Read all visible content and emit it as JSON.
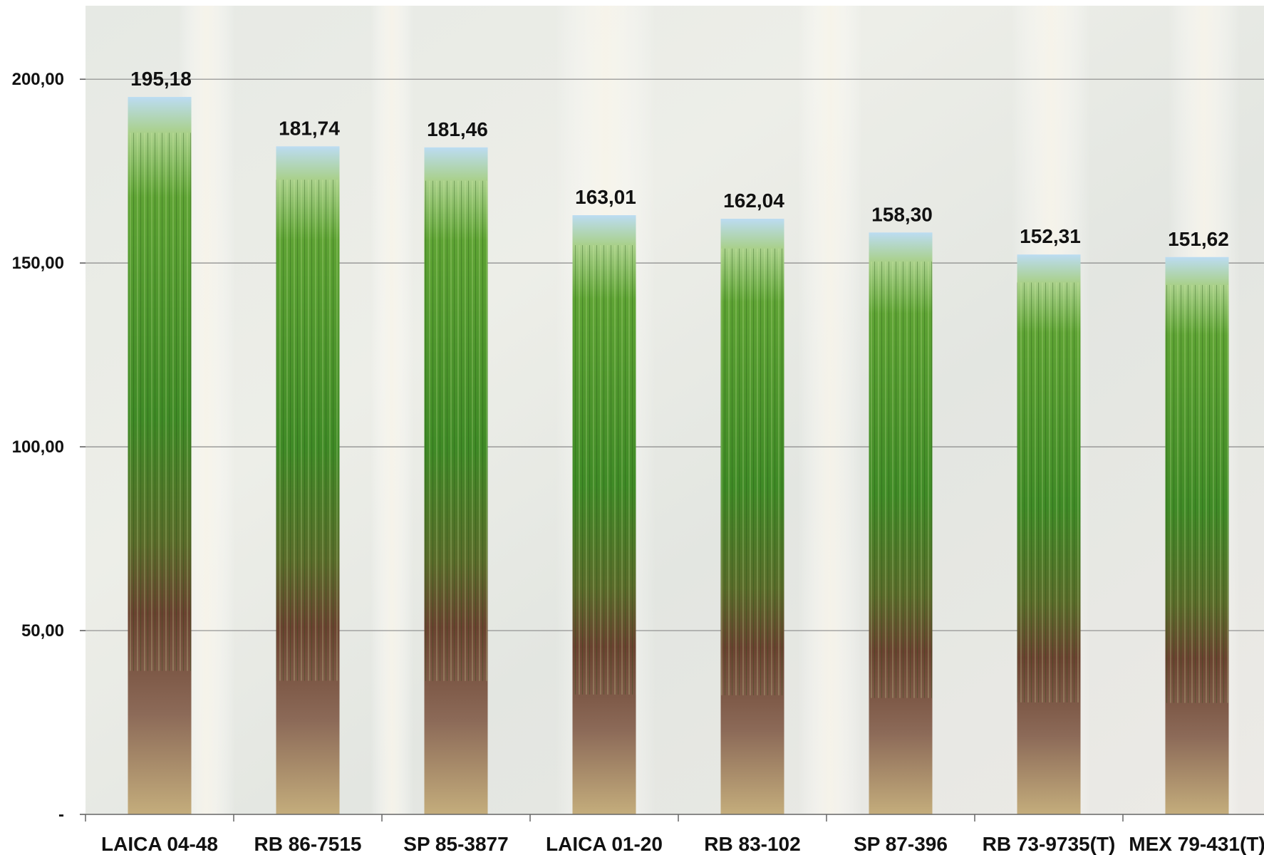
{
  "chart_data": {
    "type": "bar",
    "categories": [
      "LAICA 04-48",
      "RB 86-7515",
      "SP 85-3877",
      "LAICA 01-20",
      "RB 83-102",
      "SP 87-396",
      "RB 73-9735(T)",
      "MEX 79-431(T)"
    ],
    "values": [
      195.18,
      181.74,
      181.46,
      163.01,
      162.04,
      158.3,
      152.31,
      151.62
    ],
    "data_labels": [
      "195,18",
      "181,74",
      "181,46",
      "163,01",
      "162,04",
      "158,30",
      "152,31",
      "151,62"
    ],
    "yticks": [
      0,
      50,
      100,
      150,
      200
    ],
    "ytick_labels": [
      "-",
      "50,00",
      "100,00",
      "150,00",
      "200,00"
    ],
    "ylim": [
      0,
      220
    ],
    "grid": true,
    "title": "",
    "xlabel": "",
    "ylabel": ""
  },
  "colors": {
    "grid": "#8a8a8a",
    "sky": "#b9d8ef",
    "leaf_light": "#7fbf3a",
    "leaf_dark": "#2f6f1c",
    "stalk": "#6a3e2a",
    "soil": "#b8a071",
    "background_wash": "#e9ebe6"
  }
}
